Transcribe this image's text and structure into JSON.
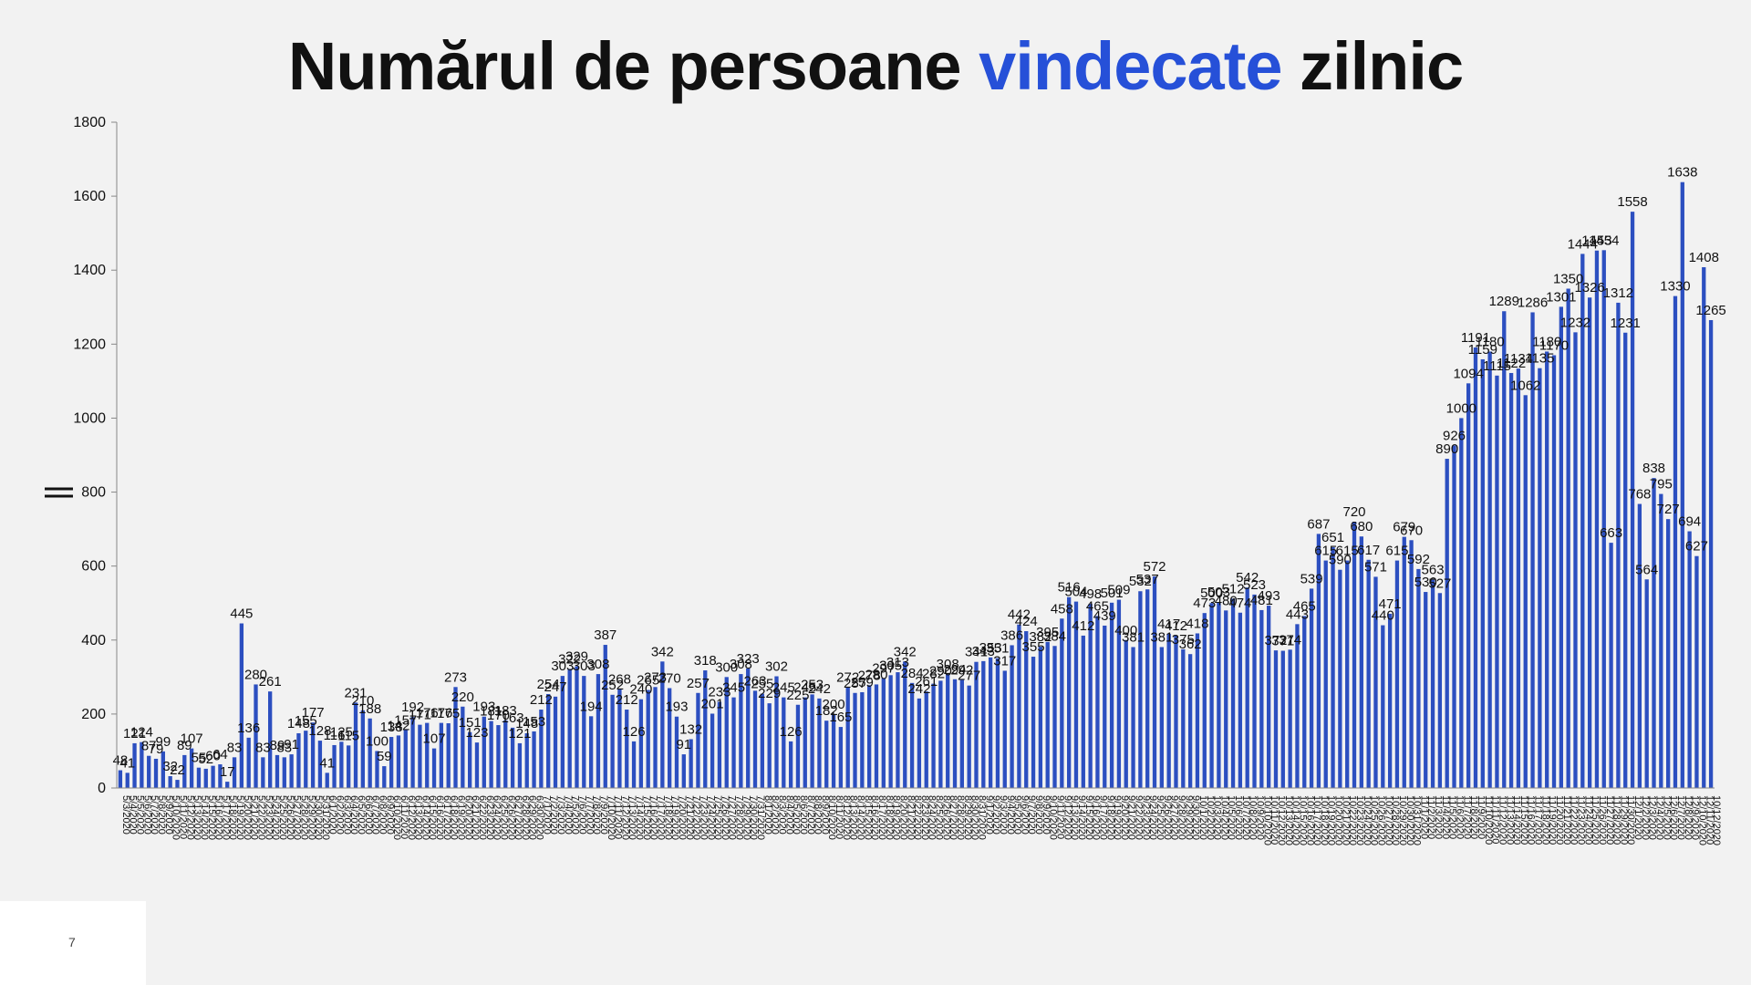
{
  "title": {
    "part1": "Numărul de persoane ",
    "accent": "vindecate",
    "part2": " zilnic"
  },
  "page_number": "7",
  "colors": {
    "bar": "#2c4fc0",
    "accent": "#2650d8",
    "background": "#f2f2f2"
  },
  "chart_data": {
    "type": "bar",
    "title": "Numărul de persoane vindecate zilnic",
    "xlabel": "",
    "ylabel": "",
    "ylim": [
      0,
      1800
    ],
    "yticks": [
      0,
      200,
      400,
      600,
      800,
      1000,
      1200,
      1400,
      1600,
      1800
    ],
    "grid": false,
    "legend": "none",
    "x_start": "5/3/2020",
    "x_end": "10/12/2020",
    "x_label_step": 1,
    "values": [
      48,
      41,
      121,
      124,
      87,
      79,
      99,
      32,
      22,
      89,
      107,
      55,
      52,
      60,
      64,
      17,
      83,
      445,
      136,
      280,
      83,
      261,
      89,
      83,
      91,
      148,
      155,
      177,
      128,
      41,
      116,
      125,
      115,
      231,
      210,
      188,
      100,
      59,
      138,
      142,
      157,
      192,
      171,
      176,
      107,
      176,
      175,
      273,
      220,
      151,
      123,
      193,
      181,
      170,
      183,
      163,
      121,
      148,
      153,
      212,
      254,
      247,
      303,
      322,
      329,
      303,
      194,
      308,
      387,
      252,
      268,
      212,
      126,
      240,
      265,
      273,
      342,
      270,
      193,
      91,
      132,
      257,
      318,
      201,
      233,
      300,
      245,
      308,
      323,
      263,
      255,
      229,
      302,
      245,
      126,
      225,
      245,
      253,
      242,
      182,
      200,
      165,
      272,
      257,
      259,
      278,
      280,
      297,
      305,
      313,
      342,
      284,
      242,
      261,
      282,
      290,
      308,
      294,
      292,
      277,
      341,
      343,
      353,
      351,
      317,
      386,
      442,
      424,
      355,
      382,
      395,
      384,
      458,
      516,
      504,
      412,
      498,
      465,
      439,
      501,
      509,
      400,
      381,
      532,
      537,
      572,
      381,
      417,
      412,
      375,
      362,
      418,
      473,
      500,
      503,
      480,
      512,
      474,
      542,
      523,
      481,
      493,
      372,
      371,
      374,
      443,
      465,
      539,
      687,
      615,
      651,
      590,
      615,
      720,
      680,
      617,
      571,
      440,
      471,
      615,
      679,
      670,
      592,
      530,
      563,
      527,
      890,
      926,
      1000,
      1094,
      1191,
      1159,
      1180,
      1115,
      1289,
      1122,
      1134,
      1062,
      1286,
      1135,
      1180,
      1170,
      1301,
      1350,
      1232,
      1444,
      1326,
      1453,
      1454,
      663,
      1312,
      1231,
      1558,
      768,
      564,
      838,
      795,
      727,
      1330,
      1638,
      694,
      627,
      1408,
      1265
    ]
  }
}
